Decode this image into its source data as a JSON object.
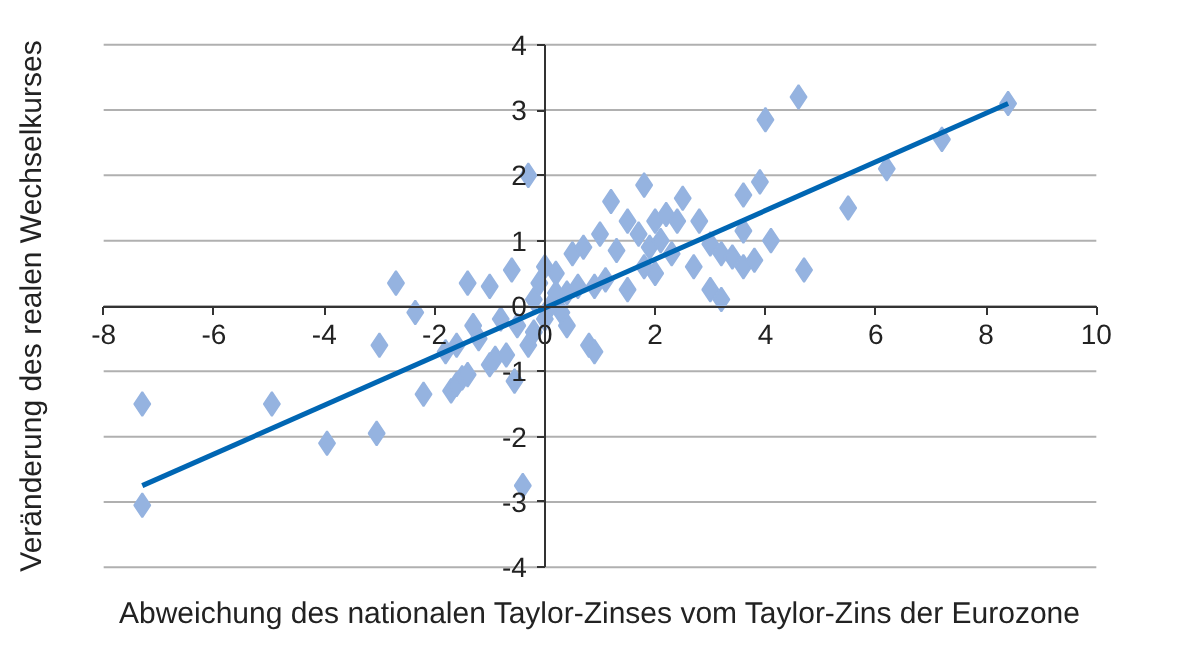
{
  "chart_data": {
    "type": "scatter",
    "xlabel": "Abweichung des nationalen Taylor-Zinses vom Taylor-Zins der Eurozone",
    "ylabel": "Veränderung des realen Wechselkurses",
    "xlim": [
      -8,
      10
    ],
    "ylim": [
      -4,
      4
    ],
    "xticks": [
      -8,
      -6,
      -4,
      -2,
      0,
      2,
      4,
      6,
      8,
      10
    ],
    "yticks": [
      -4,
      -3,
      -2,
      -1,
      0,
      1,
      2,
      3,
      4
    ],
    "grid": "y",
    "marker": "diamond",
    "series": [
      {
        "color": "#95b3e0",
        "x": [
          -7.3,
          -7.3,
          -4.95,
          -3.95,
          -3.05,
          -3.0,
          -2.7,
          -2.35,
          -2.2,
          -1.7,
          -1.6,
          -1.5,
          -1.4,
          -1.8,
          -1.6,
          -1.4,
          -1.0,
          -0.6,
          -1.3,
          -1.2,
          -0.9,
          -0.7,
          -0.55,
          -0.4,
          -0.3,
          -0.5,
          -0.3,
          -0.2,
          -0.1,
          0.0,
          0.2,
          0.3,
          0.4,
          0.5,
          0.7,
          0.8,
          0.9,
          1.0,
          1.2,
          1.3,
          1.5,
          1.8,
          1.7,
          1.9,
          2.0,
          2.2,
          2.4,
          2.5,
          2.8,
          2.7,
          1.5,
          2.0,
          3.0,
          3.2,
          3.0,
          3.2,
          3.4,
          3.6,
          3.6,
          3.9,
          3.6,
          3.8,
          4.1,
          4.0,
          4.6,
          4.7,
          5.5,
          6.2,
          7.2,
          8.4,
          0.1,
          0.0,
          -0.2,
          0.6,
          0.4,
          1.1,
          2.3,
          0.9,
          1.8,
          2.1,
          -0.8,
          -1.0,
          0.2
        ],
        "values": [
          -1.5,
          -3.05,
          -1.5,
          -2.1,
          -1.95,
          -0.6,
          0.35,
          -0.1,
          -1.35,
          -1.3,
          -1.2,
          -1.1,
          -1.05,
          -0.7,
          -0.6,
          0.35,
          0.3,
          0.55,
          -0.3,
          -0.5,
          -0.8,
          -0.75,
          -1.15,
          -2.75,
          2.0,
          -0.3,
          -0.6,
          0.1,
          0.35,
          0.6,
          0.5,
          -0.1,
          0.2,
          0.8,
          0.9,
          -0.6,
          -0.7,
          1.1,
          1.6,
          0.85,
          1.3,
          1.85,
          1.1,
          0.9,
          1.3,
          1.4,
          1.3,
          1.65,
          1.3,
          0.6,
          0.25,
          0.5,
          0.95,
          0.8,
          0.25,
          0.1,
          0.75,
          1.7,
          1.15,
          1.9,
          0.6,
          0.7,
          1.0,
          2.85,
          3.2,
          0.55,
          1.5,
          2.1,
          2.55,
          3.1,
          0.0,
          -0.2,
          -0.4,
          0.3,
          -0.3,
          0.4,
          0.8,
          0.3,
          0.6,
          1.0,
          -0.2,
          -0.9,
          0.2
        ]
      },
      {
        "type": "line",
        "marker": "none",
        "color": "#0066b3",
        "x": [
          -7.3,
          8.4
        ],
        "values": [
          -2.75,
          3.1
        ]
      }
    ]
  }
}
